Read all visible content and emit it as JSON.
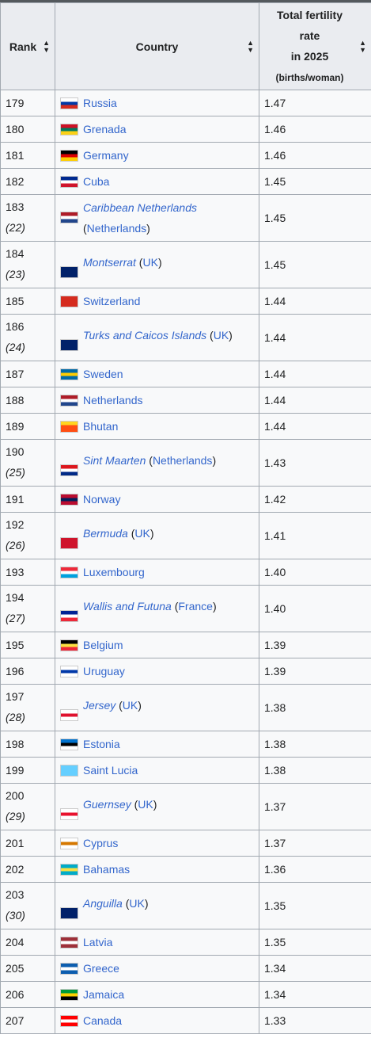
{
  "header": {
    "rank": "Rank",
    "country": "Country",
    "rate_lines": [
      "Total fertility",
      "rate",
      "in 2025"
    ],
    "rate_unit": "(births/woman)"
  },
  "rows": [
    {
      "rank": "179",
      "sub": "",
      "name": "Russia",
      "territory": false,
      "parent": "",
      "rate": "1.47",
      "flag": "russia-flag",
      "colors": [
        "#ffffff",
        "#0039a6",
        "#d52b1e"
      ]
    },
    {
      "rank": "180",
      "sub": "",
      "name": "Grenada",
      "territory": false,
      "parent": "",
      "rate": "1.46",
      "flag": "grenada-flag",
      "colors": [
        "#ce1126",
        "#007a5e",
        "#fcd116"
      ]
    },
    {
      "rank": "181",
      "sub": "",
      "name": "Germany",
      "territory": false,
      "parent": "",
      "rate": "1.46",
      "flag": "germany-flag",
      "colors": [
        "#000000",
        "#dd0000",
        "#ffce00"
      ]
    },
    {
      "rank": "182",
      "sub": "",
      "name": "Cuba",
      "territory": false,
      "parent": "",
      "rate": "1.45",
      "flag": "cuba-flag",
      "colors": [
        "#002a8f",
        "#ffffff",
        "#cf142b"
      ]
    },
    {
      "rank": "183",
      "sub": "(22)",
      "name": "Caribbean Netherlands",
      "territory": true,
      "parent": "Netherlands",
      "rate": "1.45",
      "flag": "netherlands-flag",
      "colors": [
        "#ae1c28",
        "#ffffff",
        "#21468b"
      ]
    },
    {
      "rank": "184",
      "sub": "(23)",
      "name": "Montserrat",
      "territory": true,
      "parent": "UK",
      "rate": "1.45",
      "flag": "montserrat-flag",
      "colors": [
        "#012169",
        "#012169",
        "#012169"
      ]
    },
    {
      "rank": "185",
      "sub": "",
      "name": "Switzerland",
      "territory": false,
      "parent": "",
      "rate": "1.44",
      "flag": "switzerland-flag",
      "colors": [
        "#d52b1e",
        "#d52b1e",
        "#d52b1e"
      ]
    },
    {
      "rank": "186",
      "sub": "(24)",
      "name": "Turks and Caicos Islands",
      "territory": true,
      "parent": "UK",
      "rate": "1.44",
      "flag": "turks-caicos-flag",
      "colors": [
        "#012169",
        "#012169",
        "#012169"
      ]
    },
    {
      "rank": "187",
      "sub": "",
      "name": "Sweden",
      "territory": false,
      "parent": "",
      "rate": "1.44",
      "flag": "sweden-flag",
      "colors": [
        "#006aa7",
        "#fecc00",
        "#006aa7"
      ]
    },
    {
      "rank": "188",
      "sub": "",
      "name": "Netherlands",
      "territory": false,
      "parent": "",
      "rate": "1.44",
      "flag": "netherlands-flag",
      "colors": [
        "#ae1c28",
        "#ffffff",
        "#21468b"
      ]
    },
    {
      "rank": "189",
      "sub": "",
      "name": "Bhutan",
      "territory": false,
      "parent": "",
      "rate": "1.44",
      "flag": "bhutan-flag",
      "colors": [
        "#ffd520",
        "#ff4e12",
        "#ff4e12"
      ]
    },
    {
      "rank": "190",
      "sub": "(25)",
      "name": "Sint Maarten",
      "territory": true,
      "parent": "Netherlands",
      "rate": "1.43",
      "flag": "sint-maarten-flag",
      "colors": [
        "#dc171d",
        "#ffffff",
        "#012a87"
      ]
    },
    {
      "rank": "191",
      "sub": "",
      "name": "Norway",
      "territory": false,
      "parent": "",
      "rate": "1.42",
      "flag": "norway-flag",
      "colors": [
        "#ba0c2f",
        "#00205b",
        "#ba0c2f"
      ]
    },
    {
      "rank": "192",
      "sub": "(26)",
      "name": "Bermuda",
      "territory": true,
      "parent": "UK",
      "rate": "1.41",
      "flag": "bermuda-flag",
      "colors": [
        "#cf142b",
        "#cf142b",
        "#cf142b"
      ]
    },
    {
      "rank": "193",
      "sub": "",
      "name": "Luxembourg",
      "territory": false,
      "parent": "",
      "rate": "1.40",
      "flag": "luxembourg-flag",
      "colors": [
        "#ed2939",
        "#ffffff",
        "#00a1de"
      ]
    },
    {
      "rank": "194",
      "sub": "(27)",
      "name": "Wallis and Futuna",
      "territory": true,
      "parent": "France",
      "rate": "1.40",
      "flag": "france-flag",
      "colors": [
        "#002395",
        "#ffffff",
        "#ed2939"
      ]
    },
    {
      "rank": "195",
      "sub": "",
      "name": "Belgium",
      "territory": false,
      "parent": "",
      "rate": "1.39",
      "flag": "belgium-flag",
      "colors": [
        "#000000",
        "#fae042",
        "#ed2939"
      ]
    },
    {
      "rank": "196",
      "sub": "",
      "name": "Uruguay",
      "territory": false,
      "parent": "",
      "rate": "1.39",
      "flag": "uruguay-flag",
      "colors": [
        "#ffffff",
        "#0038a8",
        "#ffffff"
      ]
    },
    {
      "rank": "197",
      "sub": "(28)",
      "name": "Jersey",
      "territory": true,
      "parent": "UK",
      "rate": "1.38",
      "flag": "jersey-flag",
      "colors": [
        "#ffffff",
        "#df112d",
        "#ffffff"
      ]
    },
    {
      "rank": "198",
      "sub": "",
      "name": "Estonia",
      "territory": false,
      "parent": "",
      "rate": "1.38",
      "flag": "estonia-flag",
      "colors": [
        "#0072ce",
        "#000000",
        "#ffffff"
      ]
    },
    {
      "rank": "199",
      "sub": "",
      "name": "Saint Lucia",
      "territory": false,
      "parent": "",
      "rate": "1.38",
      "flag": "saint-lucia-flag",
      "colors": [
        "#65cfff",
        "#65cfff",
        "#65cfff"
      ]
    },
    {
      "rank": "200",
      "sub": "(29)",
      "name": "Guernsey",
      "territory": true,
      "parent": "UK",
      "rate": "1.37",
      "flag": "guernsey-flag",
      "colors": [
        "#ffffff",
        "#e8112d",
        "#ffffff"
      ]
    },
    {
      "rank": "201",
      "sub": "",
      "name": "Cyprus",
      "territory": false,
      "parent": "",
      "rate": "1.37",
      "flag": "cyprus-flag",
      "colors": [
        "#ffffff",
        "#d57800",
        "#ffffff"
      ]
    },
    {
      "rank": "202",
      "sub": "",
      "name": "Bahamas",
      "territory": false,
      "parent": "",
      "rate": "1.36",
      "flag": "bahamas-flag",
      "colors": [
        "#00abc9",
        "#fae042",
        "#00abc9"
      ]
    },
    {
      "rank": "203",
      "sub": "(30)",
      "name": "Anguilla",
      "territory": true,
      "parent": "UK",
      "rate": "1.35",
      "flag": "anguilla-flag",
      "colors": [
        "#012169",
        "#012169",
        "#012169"
      ]
    },
    {
      "rank": "204",
      "sub": "",
      "name": "Latvia",
      "territory": false,
      "parent": "",
      "rate": "1.35",
      "flag": "latvia-flag",
      "colors": [
        "#9e3039",
        "#ffffff",
        "#9e3039"
      ]
    },
    {
      "rank": "205",
      "sub": "",
      "name": "Greece",
      "territory": false,
      "parent": "",
      "rate": "1.34",
      "flag": "greece-flag",
      "colors": [
        "#0d5eaf",
        "#ffffff",
        "#0d5eaf"
      ]
    },
    {
      "rank": "206",
      "sub": "",
      "name": "Jamaica",
      "territory": false,
      "parent": "",
      "rate": "1.34",
      "flag": "jamaica-flag",
      "colors": [
        "#009b3a",
        "#fed100",
        "#000000"
      ]
    },
    {
      "rank": "207",
      "sub": "",
      "name": "Canada",
      "territory": false,
      "parent": "",
      "rate": "1.33",
      "flag": "canada-flag",
      "colors": [
        "#ff0000",
        "#ffffff",
        "#ff0000"
      ]
    }
  ]
}
